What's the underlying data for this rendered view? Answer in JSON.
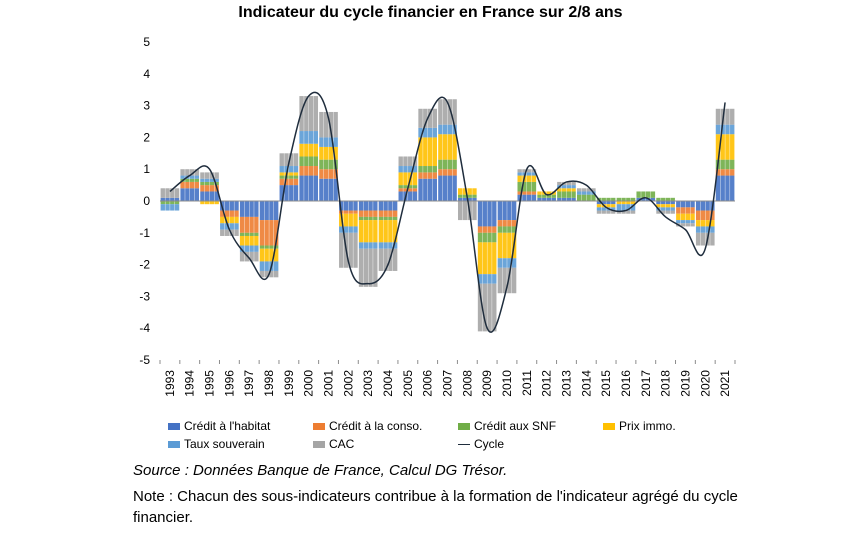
{
  "chart_data": {
    "type": "bar",
    "title": "Indicateur du cycle financier en France sur 2/8 ans",
    "xlabel": "",
    "ylabel": "",
    "ylim": [
      -5,
      5
    ],
    "yticks": [
      "5",
      "4",
      "3",
      "2",
      "1",
      "0",
      "-1",
      "-2",
      "-3",
      "-4",
      "-5"
    ],
    "categories": [
      "1993",
      "1994",
      "1995",
      "1996",
      "1997",
      "1998",
      "1999",
      "2000",
      "2001",
      "2002",
      "2003",
      "2004",
      "2005",
      "2006",
      "2007",
      "2008",
      "2009",
      "2010",
      "2011",
      "2012",
      "2013",
      "2014",
      "2015",
      "2016",
      "2017",
      "2018",
      "2019",
      "2020",
      "2021"
    ],
    "stacked": true,
    "legend_position": "bottom",
    "series": [
      {
        "name": "Crédit à l'habitat",
        "color": "#4472c4",
        "values": [
          0.1,
          0.4,
          0.3,
          -0.3,
          -0.5,
          -0.6,
          0.5,
          0.8,
          0.7,
          -0.3,
          -0.3,
          -0.3,
          0.3,
          0.7,
          0.8,
          0.1,
          -0.8,
          -0.6,
          0.2,
          0.1,
          0.1,
          0.0,
          -0.1,
          0.0,
          0.1,
          -0.1,
          -0.2,
          -0.3,
          0.8
        ]
      },
      {
        "name": "Crédit à la conso.",
        "color": "#ed7d31",
        "values": [
          0.0,
          0.2,
          0.2,
          -0.2,
          -0.5,
          -0.8,
          0.2,
          0.3,
          0.3,
          -0.1,
          -0.2,
          -0.2,
          0.1,
          0.2,
          0.2,
          0.0,
          -0.2,
          -0.2,
          0.1,
          0.0,
          0.0,
          0.0,
          0.0,
          0.0,
          0.0,
          0.0,
          -0.2,
          -0.3,
          0.2
        ]
      },
      {
        "name": "Crédit aux SNF",
        "color": "#70ad47",
        "values": [
          -0.1,
          0.1,
          0.1,
          0.0,
          -0.1,
          -0.1,
          0.1,
          0.3,
          0.3,
          0.0,
          -0.1,
          -0.1,
          0.1,
          0.2,
          0.3,
          0.1,
          -0.3,
          -0.2,
          0.3,
          0.1,
          0.2,
          0.2,
          0.1,
          0.1,
          0.2,
          0.1,
          0.0,
          0.0,
          0.3
        ]
      },
      {
        "name": "Prix immo.",
        "color": "#ffc000",
        "values": [
          0.0,
          0.0,
          -0.1,
          -0.2,
          -0.3,
          -0.4,
          0.1,
          0.4,
          0.4,
          -0.4,
          -0.7,
          -0.7,
          0.4,
          0.9,
          0.8,
          0.2,
          -1.0,
          -0.8,
          0.2,
          0.1,
          0.1,
          0.0,
          -0.1,
          -0.1,
          0.0,
          -0.1,
          -0.2,
          -0.2,
          0.8
        ]
      },
      {
        "name": "Taux souverain",
        "color": "#5b9bd5",
        "values": [
          -0.2,
          0.1,
          0.1,
          -0.2,
          -0.2,
          -0.3,
          0.2,
          0.4,
          0.3,
          -0.2,
          -0.2,
          -0.2,
          0.2,
          0.3,
          0.3,
          0.0,
          -0.3,
          -0.3,
          0.1,
          0.0,
          0.1,
          0.1,
          -0.1,
          -0.2,
          0.0,
          -0.1,
          -0.1,
          -0.2,
          0.3
        ]
      },
      {
        "name": "CAC",
        "color": "#a5a5a5",
        "values": [
          0.3,
          0.2,
          0.2,
          -0.2,
          -0.3,
          -0.2,
          0.4,
          1.1,
          0.8,
          -1.1,
          -1.2,
          -0.7,
          0.3,
          0.6,
          0.8,
          -0.6,
          -1.5,
          -0.8,
          0.1,
          0.0,
          0.1,
          0.1,
          -0.1,
          -0.1,
          0.0,
          -0.1,
          -0.1,
          -0.4,
          0.5
        ]
      },
      {
        "name": "Cycle",
        "color": "#1f2d3d",
        "kind": "line",
        "values": [
          0.3,
          0.8,
          1.0,
          -0.9,
          -1.8,
          -2.3,
          1.2,
          3.3,
          2.6,
          -1.9,
          -2.6,
          -2.0,
          0.4,
          2.6,
          3.1,
          0.1,
          -4.0,
          -2.7,
          1.0,
          0.2,
          0.6,
          0.5,
          -0.2,
          -0.3,
          0.1,
          -0.5,
          -0.9,
          -1.5,
          3.1
        ]
      }
    ]
  },
  "source_text": "Source : Données Banque de France, Calcul DG Trésor.",
  "note_text": "Note : Chacun des sous-indicateurs contribue à la formation de l'indicateur agrégé du cycle financier."
}
